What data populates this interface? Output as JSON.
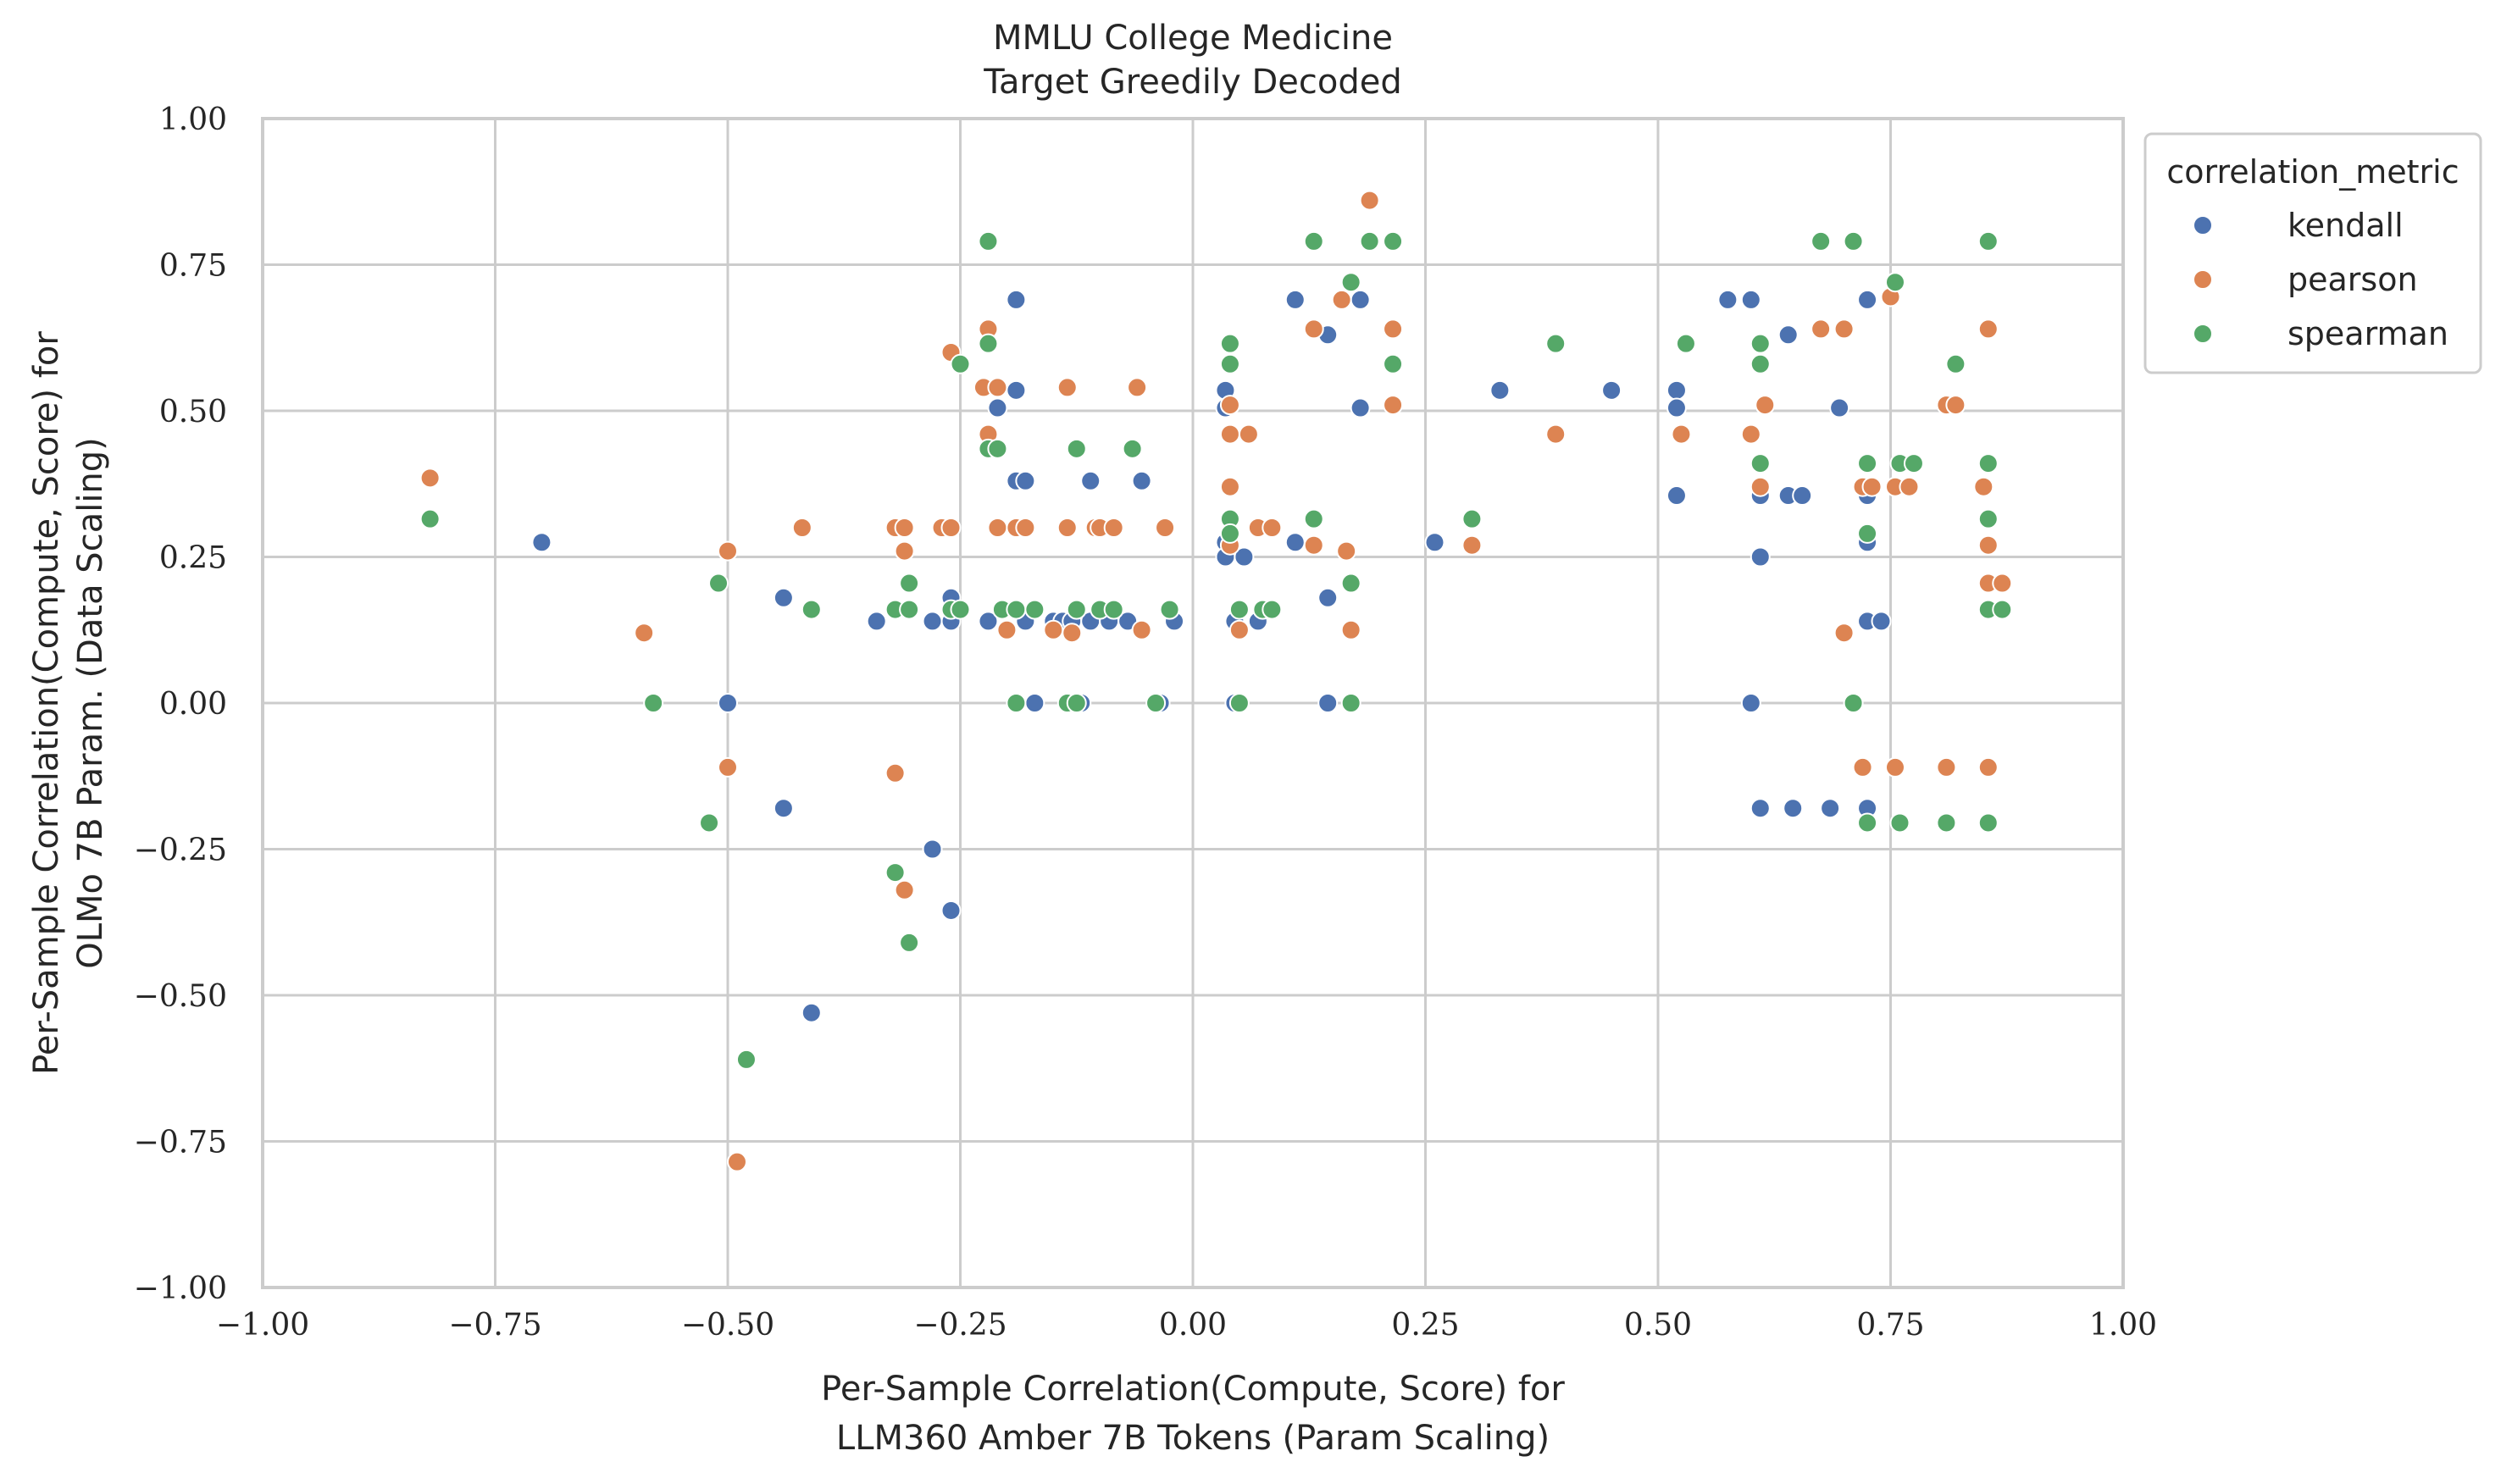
{
  "chart_data": {
    "type": "scatter",
    "title": [
      "MMLU College Medicine",
      "Target Greedily Decoded"
    ],
    "xlabel": [
      "Per-Sample Correlation(Compute, Score) for",
      "LLM360 Amber 7B Tokens (Param Scaling)"
    ],
    "ylabel": [
      "Per-Sample Correlation(Compute, Score) for",
      "OLMo 7B Param. (Data Scaling)"
    ],
    "xlim": [
      -1.0,
      1.0
    ],
    "ylim": [
      -1.0,
      1.0
    ],
    "xticks": [
      "−1.00",
      "−0.75",
      "−0.50",
      "−0.25",
      "0.00",
      "0.25",
      "0.50",
      "0.75",
      "1.00"
    ],
    "yticks": [
      "−1.00",
      "−0.75",
      "−0.50",
      "−0.25",
      "0.00",
      "0.25",
      "0.50",
      "0.75",
      "1.00"
    ],
    "grid": true,
    "legend": {
      "title": "correlation_metric",
      "placement": "outside-top-right"
    },
    "series": [
      {
        "name": "kendall",
        "color": "#4c72b0",
        "points": [
          [
            -0.7,
            0.275
          ],
          [
            -0.5,
            0.0
          ],
          [
            -0.44,
            0.18
          ],
          [
            -0.44,
            -0.18
          ],
          [
            -0.41,
            -0.53
          ],
          [
            -0.34,
            0.14
          ],
          [
            -0.28,
            0.14
          ],
          [
            -0.28,
            -0.25
          ],
          [
            -0.26,
            0.18
          ],
          [
            -0.26,
            0.14
          ],
          [
            -0.26,
            -0.355
          ],
          [
            -0.22,
            0.14
          ],
          [
            -0.21,
            0.505
          ],
          [
            -0.19,
            0.69
          ],
          [
            -0.19,
            0.535
          ],
          [
            -0.19,
            0.38
          ],
          [
            -0.18,
            0.38
          ],
          [
            -0.18,
            0.14
          ],
          [
            -0.17,
            0.0
          ],
          [
            -0.15,
            0.14
          ],
          [
            -0.14,
            0.14
          ],
          [
            -0.13,
            0.14
          ],
          [
            -0.12,
            0.0
          ],
          [
            -0.11,
            0.38
          ],
          [
            -0.11,
            0.14
          ],
          [
            -0.09,
            0.14
          ],
          [
            -0.07,
            0.14
          ],
          [
            -0.055,
            0.38
          ],
          [
            -0.035,
            0.0
          ],
          [
            -0.02,
            0.14
          ],
          [
            0.035,
            0.535
          ],
          [
            0.035,
            0.505
          ],
          [
            0.035,
            0.275
          ],
          [
            0.035,
            0.25
          ],
          [
            0.045,
            0.14
          ],
          [
            0.045,
            0.0
          ],
          [
            0.055,
            0.25
          ],
          [
            0.07,
            0.14
          ],
          [
            0.11,
            0.69
          ],
          [
            0.11,
            0.275
          ],
          [
            0.145,
            0.63
          ],
          [
            0.145,
            0.18
          ],
          [
            0.145,
            0.0
          ],
          [
            0.18,
            0.69
          ],
          [
            0.18,
            0.505
          ],
          [
            0.26,
            0.275
          ],
          [
            0.33,
            0.535
          ],
          [
            0.45,
            0.535
          ],
          [
            0.52,
            0.535
          ],
          [
            0.52,
            0.505
          ],
          [
            0.52,
            0.355
          ],
          [
            0.575,
            0.69
          ],
          [
            0.6,
            0.69
          ],
          [
            0.6,
            0.0
          ],
          [
            0.61,
            0.355
          ],
          [
            0.61,
            0.25
          ],
          [
            0.61,
            -0.18
          ],
          [
            0.64,
            0.63
          ],
          [
            0.64,
            0.355
          ],
          [
            0.645,
            -0.18
          ],
          [
            0.655,
            0.355
          ],
          [
            0.685,
            -0.18
          ],
          [
            0.695,
            0.505
          ],
          [
            0.725,
            0.69
          ],
          [
            0.725,
            0.355
          ],
          [
            0.725,
            0.275
          ],
          [
            0.725,
            0.14
          ],
          [
            0.725,
            -0.18
          ],
          [
            0.74,
            0.14
          ]
        ]
      },
      {
        "name": "pearson",
        "color": "#dd8452",
        "points": [
          [
            -0.82,
            0.385
          ],
          [
            -0.59,
            0.12
          ],
          [
            -0.5,
            0.26
          ],
          [
            -0.5,
            -0.11
          ],
          [
            -0.49,
            -0.785
          ],
          [
            -0.42,
            0.3
          ],
          [
            -0.32,
            0.3
          ],
          [
            -0.32,
            -0.12
          ],
          [
            -0.31,
            0.3
          ],
          [
            -0.31,
            0.26
          ],
          [
            -0.31,
            -0.32
          ],
          [
            -0.27,
            0.3
          ],
          [
            -0.26,
            0.6
          ],
          [
            -0.26,
            0.3
          ],
          [
            -0.225,
            0.54
          ],
          [
            -0.22,
            0.64
          ],
          [
            -0.22,
            0.46
          ],
          [
            -0.21,
            0.54
          ],
          [
            -0.21,
            0.3
          ],
          [
            -0.2,
            0.125
          ],
          [
            -0.19,
            0.3
          ],
          [
            -0.18,
            0.3
          ],
          [
            -0.15,
            0.125
          ],
          [
            -0.135,
            0.54
          ],
          [
            -0.135,
            0.3
          ],
          [
            -0.13,
            0.12
          ],
          [
            -0.105,
            0.3
          ],
          [
            -0.1,
            0.3
          ],
          [
            -0.085,
            0.3
          ],
          [
            -0.06,
            0.54
          ],
          [
            -0.055,
            0.125
          ],
          [
            -0.03,
            0.3
          ],
          [
            0.04,
            0.51
          ],
          [
            0.04,
            0.46
          ],
          [
            0.04,
            0.37
          ],
          [
            0.04,
            0.27
          ],
          [
            0.05,
            0.125
          ],
          [
            0.06,
            0.46
          ],
          [
            0.07,
            0.3
          ],
          [
            0.085,
            0.3
          ],
          [
            0.13,
            0.64
          ],
          [
            0.13,
            0.27
          ],
          [
            0.16,
            0.69
          ],
          [
            0.165,
            0.26
          ],
          [
            0.17,
            0.125
          ],
          [
            0.19,
            0.86
          ],
          [
            0.215,
            0.64
          ],
          [
            0.215,
            0.51
          ],
          [
            0.3,
            0.27
          ],
          [
            0.39,
            0.46
          ],
          [
            0.525,
            0.46
          ],
          [
            0.6,
            0.46
          ],
          [
            0.61,
            0.37
          ],
          [
            0.615,
            0.51
          ],
          [
            0.675,
            0.64
          ],
          [
            0.7,
            0.64
          ],
          [
            0.7,
            0.12
          ],
          [
            0.72,
            0.37
          ],
          [
            0.72,
            -0.11
          ],
          [
            0.73,
            0.37
          ],
          [
            0.75,
            0.695
          ],
          [
            0.755,
            0.37
          ],
          [
            0.755,
            -0.11
          ],
          [
            0.77,
            0.37
          ],
          [
            0.81,
            0.51
          ],
          [
            0.81,
            -0.11
          ],
          [
            0.82,
            0.51
          ],
          [
            0.85,
            0.37
          ],
          [
            0.855,
            0.64
          ],
          [
            0.855,
            0.27
          ],
          [
            0.855,
            0.205
          ],
          [
            0.855,
            -0.11
          ],
          [
            0.87,
            0.205
          ]
        ]
      },
      {
        "name": "spearman",
        "color": "#55a868",
        "points": [
          [
            -0.82,
            0.315
          ],
          [
            -0.58,
            0.0
          ],
          [
            -0.51,
            0.205
          ],
          [
            -0.52,
            -0.205
          ],
          [
            -0.48,
            -0.61
          ],
          [
            -0.41,
            0.16
          ],
          [
            -0.32,
            0.16
          ],
          [
            -0.32,
            -0.29
          ],
          [
            -0.305,
            0.205
          ],
          [
            -0.305,
            0.16
          ],
          [
            -0.305,
            -0.41
          ],
          [
            -0.26,
            0.16
          ],
          [
            -0.25,
            0.58
          ],
          [
            -0.25,
            0.16
          ],
          [
            -0.22,
            0.79
          ],
          [
            -0.22,
            0.615
          ],
          [
            -0.22,
            0.435
          ],
          [
            -0.21,
            0.435
          ],
          [
            -0.205,
            0.16
          ],
          [
            -0.19,
            0.0
          ],
          [
            -0.19,
            0.16
          ],
          [
            -0.17,
            0.16
          ],
          [
            -0.135,
            0.0
          ],
          [
            -0.125,
            0.435
          ],
          [
            -0.125,
            0.16
          ],
          [
            -0.125,
            0.0
          ],
          [
            -0.1,
            0.16
          ],
          [
            -0.085,
            0.16
          ],
          [
            -0.065,
            0.435
          ],
          [
            -0.04,
            0.0
          ],
          [
            -0.025,
            0.16
          ],
          [
            0.04,
            0.615
          ],
          [
            0.04,
            0.58
          ],
          [
            0.04,
            0.315
          ],
          [
            0.04,
            0.29
          ],
          [
            0.05,
            0.16
          ],
          [
            0.05,
            0.0
          ],
          [
            0.075,
            0.16
          ],
          [
            0.085,
            0.16
          ],
          [
            0.13,
            0.79
          ],
          [
            0.13,
            0.315
          ],
          [
            0.17,
            0.72
          ],
          [
            0.17,
            0.205
          ],
          [
            0.17,
            0.0
          ],
          [
            0.19,
            0.79
          ],
          [
            0.215,
            0.79
          ],
          [
            0.215,
            0.58
          ],
          [
            0.3,
            0.315
          ],
          [
            0.39,
            0.615
          ],
          [
            0.53,
            0.615
          ],
          [
            0.61,
            0.615
          ],
          [
            0.61,
            0.58
          ],
          [
            0.61,
            0.41
          ],
          [
            0.675,
            0.79
          ],
          [
            0.71,
            0.79
          ],
          [
            0.71,
            0.0
          ],
          [
            0.725,
            0.41
          ],
          [
            0.725,
            0.29
          ],
          [
            0.725,
            -0.205
          ],
          [
            0.755,
            0.72
          ],
          [
            0.76,
            0.41
          ],
          [
            0.76,
            -0.205
          ],
          [
            0.775,
            0.41
          ],
          [
            0.81,
            -0.205
          ],
          [
            0.82,
            0.58
          ],
          [
            0.855,
            0.79
          ],
          [
            0.855,
            0.41
          ],
          [
            0.855,
            0.315
          ],
          [
            0.855,
            0.16
          ],
          [
            0.855,
            -0.205
          ],
          [
            0.87,
            0.16
          ]
        ]
      }
    ]
  }
}
